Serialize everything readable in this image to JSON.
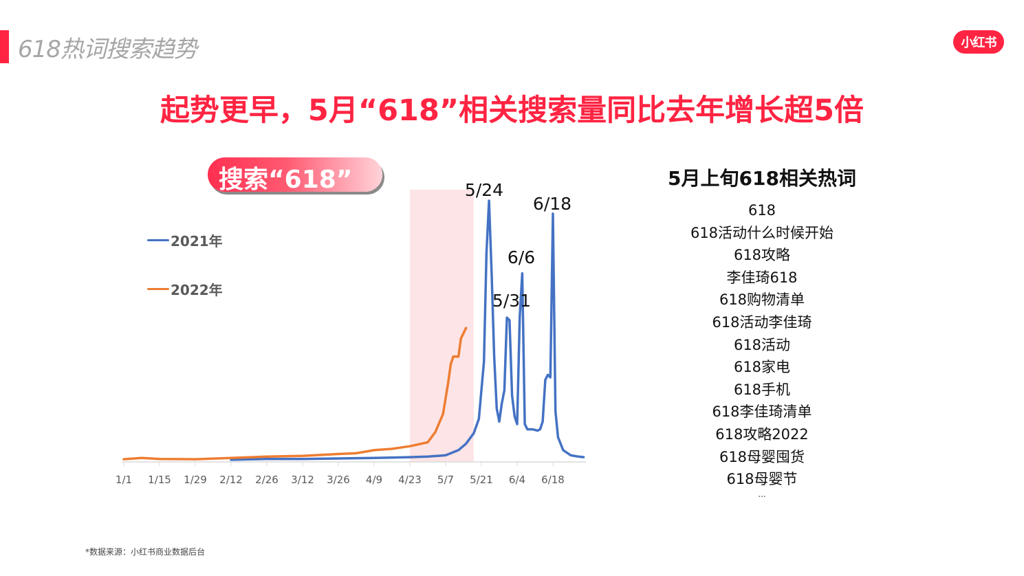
{
  "header": {
    "section_title": "618热词搜索趋势",
    "brand_logo": "小红书",
    "headline": "起势更早，5月“618”相关搜索量同比去年增长超5倍"
  },
  "pill": {
    "label": "搜索“618”"
  },
  "colors": {
    "brand_red": "#ff2442",
    "series_2021": "#4472c4",
    "series_2022": "#ed7d31",
    "highlight_band": "#fde4e6",
    "axis": "#d9d9d9"
  },
  "legend": [
    {
      "label": "2021年",
      "color": "#4472c4"
    },
    {
      "label": "2022年",
      "color": "#ed7d31"
    }
  ],
  "chart_data": {
    "type": "line",
    "title": "搜索“618”",
    "xlabel": "",
    "ylabel": "",
    "x_tick_labels": [
      "1/1",
      "1/15",
      "1/29",
      "2/12",
      "2/26",
      "3/12",
      "3/26",
      "4/9",
      "4/23",
      "5/7",
      "5/21",
      "6/4",
      "6/18"
    ],
    "grid": false,
    "y_axis_visible": false,
    "legend_position": "upper-left",
    "highlight_range": {
      "from": "4/23",
      "to": "5/18"
    },
    "annotations": [
      {
        "label": "5/24",
        "x": "5/24",
        "series": "2021年"
      },
      {
        "label": "5/31",
        "x": "5/31",
        "series": "2021年"
      },
      {
        "label": "6/6",
        "x": "6/6",
        "series": "2021年"
      },
      {
        "label": "6/18",
        "x": "6/18",
        "series": "2021年"
      }
    ],
    "units": "relative search index (0-100, unlabeled)",
    "series": [
      {
        "name": "2021年",
        "color": "#4472c4",
        "x": [
          "2/12",
          "2/26",
          "3/12",
          "3/26",
          "4/9",
          "4/23",
          "4/30",
          "5/7",
          "5/12",
          "5/15",
          "5/18",
          "5/20",
          "5/22",
          "5/23",
          "5/24",
          "5/25",
          "5/26",
          "5/27",
          "5/28",
          "5/29",
          "5/30",
          "5/31",
          "6/1",
          "6/2",
          "6/3",
          "6/4",
          "6/5",
          "6/6",
          "6/7",
          "6/8",
          "6/10",
          "6/12",
          "6/13",
          "6/14",
          "6/15",
          "6/16",
          "6/17",
          "6/18",
          "6/19",
          "6/20",
          "6/22",
          "6/25",
          "6/28",
          "6/30"
        ],
        "values": [
          0.3,
          0.6,
          0.6,
          0.8,
          1.0,
          1.3,
          1.5,
          2.0,
          4.0,
          6.5,
          10.5,
          16,
          38,
          80,
          100,
          72,
          40,
          20,
          15,
          22,
          27,
          55,
          54,
          25,
          17,
          14,
          55,
          72,
          14,
          12,
          12,
          11.5,
          12,
          15,
          31,
          33,
          32,
          95,
          19,
          9,
          4,
          2,
          1.5,
          1.3
        ]
      },
      {
        "name": "2022年",
        "color": "#ed7d31",
        "x": [
          "1/1",
          "1/8",
          "1/15",
          "1/29",
          "2/12",
          "2/26",
          "3/12",
          "3/26",
          "4/2",
          "4/9",
          "4/16",
          "4/23",
          "4/30",
          "5/3",
          "5/6",
          "5/8",
          "5/9",
          "5/10",
          "5/12",
          "5/13",
          "5/15"
        ],
        "values": [
          0.5,
          1.0,
          0.6,
          0.5,
          1.0,
          1.5,
          1.8,
          2.5,
          2.8,
          4.0,
          4.5,
          5.5,
          7,
          11,
          18,
          30,
          37,
          40,
          40,
          47,
          51
        ]
      }
    ]
  },
  "keywords_panel": {
    "title": "5月上旬618相关热词",
    "items": [
      "618",
      "618活动什么时候开始",
      "618攻略",
      "李佳琦618",
      "618购物清单",
      "618活动李佳琦",
      "618活动",
      "618家电",
      "618手机",
      "618李佳琦清单",
      "618攻略2022",
      "618母婴囤货",
      "618母婴节"
    ],
    "more": "..."
  },
  "footnote": "*数据来源：小红书商业数据后台"
}
